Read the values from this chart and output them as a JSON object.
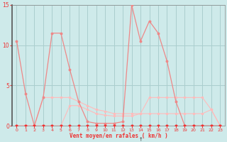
{
  "xlabel": "Vent moyen/en rafales ( km/h )",
  "bg_color": "#ceeaea",
  "grid_color": "#aacece",
  "line_color_dark": "#ee3333",
  "line_color_mid": "#ee8888",
  "line_color_light": "#ffbbbb",
  "axis_color": "#444444",
  "xlim": [
    -0.5,
    23.5
  ],
  "ylim": [
    0,
    15
  ],
  "xticks": [
    0,
    1,
    2,
    3,
    4,
    5,
    6,
    7,
    8,
    9,
    10,
    11,
    12,
    13,
    14,
    15,
    16,
    17,
    18,
    19,
    20,
    21,
    22,
    23
  ],
  "yticks": [
    0,
    5,
    10,
    15
  ],
  "x": [
    0,
    1,
    2,
    3,
    4,
    5,
    6,
    7,
    8,
    9,
    10,
    11,
    12,
    13,
    14,
    15,
    16,
    17,
    18,
    19,
    20,
    21,
    22,
    23
  ],
  "series_rafales": [
    0.0,
    0.0,
    0.0,
    0.0,
    11.5,
    11.5,
    0.0,
    0.0,
    0.0,
    0.0,
    0.0,
    0.0,
    0.0,
    15.0,
    10.5,
    13.0,
    11.5,
    0.0,
    0.0,
    0.0,
    0.0,
    0.0,
    0.0,
    0.0
  ],
  "series_vent": [
    10.5,
    4.0,
    0.0,
    3.5,
    11.5,
    11.5,
    7.0,
    3.0,
    0.5,
    0.3,
    0.3,
    0.3,
    0.5,
    15.0,
    10.5,
    13.0,
    11.5,
    8.0,
    3.0,
    0.0,
    0.0,
    0.0,
    0.0,
    0.0
  ],
  "series_moy1": [
    0.0,
    0.0,
    0.0,
    3.5,
    3.5,
    3.5,
    3.5,
    3.0,
    2.5,
    2.0,
    1.8,
    1.5,
    1.5,
    1.5,
    1.5,
    3.5,
    3.5,
    3.5,
    3.5,
    3.5,
    3.5,
    3.5,
    2.0,
    0.0
  ],
  "series_moy2": [
    0.0,
    0.0,
    0.0,
    0.0,
    0.0,
    0.0,
    2.5,
    2.5,
    2.0,
    1.5,
    1.3,
    1.2,
    1.2,
    1.2,
    1.5,
    1.5,
    1.5,
    1.5,
    1.5,
    1.5,
    1.5,
    1.5,
    2.0,
    0.0
  ],
  "series_zero": [
    0.0,
    0.0,
    0.0,
    0.0,
    0.0,
    0.0,
    0.0,
    0.0,
    0.0,
    0.0,
    0.0,
    0.0,
    0.0,
    0.0,
    0.0,
    0.0,
    0.0,
    0.0,
    0.0,
    0.0,
    0.0,
    0.0,
    0.0,
    0.0
  ]
}
